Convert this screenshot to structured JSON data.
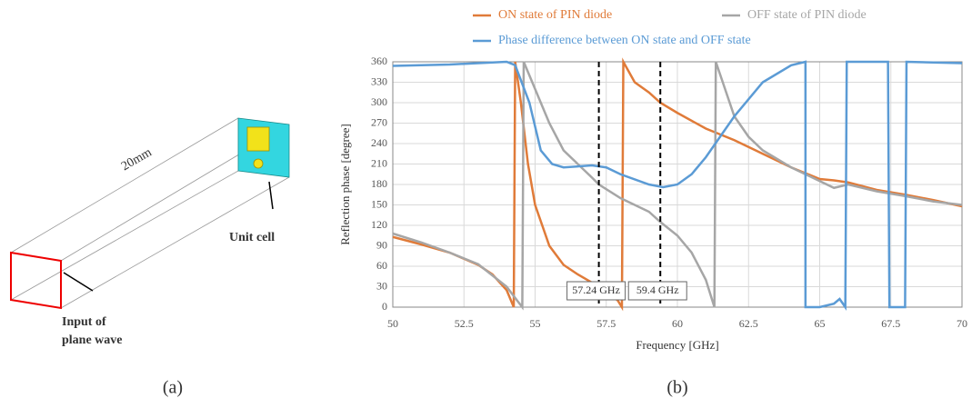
{
  "diagram": {
    "dimension": "20mm",
    "unit_cell": "Unit cell",
    "input": [
      "Input of",
      "plane wave"
    ]
  },
  "panel_labels": [
    "(a)",
    "(b)"
  ],
  "chart_data": {
    "type": "line",
    "x_label": "Frequency [GHz]",
    "y_label": "Reflection phase [degree]",
    "xlim": [
      50,
      70
    ],
    "ylim": [
      0,
      360
    ],
    "xticks": [
      50,
      52.5,
      55,
      57.5,
      60,
      62.5,
      65,
      67.5,
      70
    ],
    "yticks": [
      0,
      30,
      60,
      90,
      120,
      150,
      180,
      210,
      240,
      270,
      300,
      330,
      360
    ],
    "grid": true,
    "annotations": [
      {
        "x": 57.24,
        "label": "57.24 GHz"
      },
      {
        "x": 59.4,
        "label": "59.4 GHz"
      }
    ],
    "series": [
      {
        "name": "ON state of PIN diode",
        "color": "#e07b39",
        "x": [
          50,
          51,
          52,
          53,
          53.5,
          54,
          54.25,
          54.3,
          54.5,
          54.75,
          55,
          55.5,
          56,
          56.5,
          57,
          57.5,
          57.9,
          58.05,
          58.1,
          58.5,
          59,
          59.4,
          60,
          61,
          62,
          63,
          64,
          65,
          65.5,
          66,
          67,
          68,
          69,
          70
        ],
        "values": [
          103,
          92,
          80,
          62,
          48,
          25,
          0,
          360,
          300,
          210,
          150,
          90,
          62,
          48,
          36,
          22,
          10,
          0,
          360,
          330,
          315,
          300,
          285,
          262,
          245,
          225,
          205,
          188,
          186,
          183,
          172,
          165,
          157,
          148
        ]
      },
      {
        "name": "OFF state of PIN diode",
        "color": "#a6a6a6",
        "x": [
          50,
          51,
          52,
          53,
          54,
          54.4,
          54.55,
          54.6,
          55,
          55.5,
          56,
          57,
          57.24,
          58,
          59,
          59.4,
          60,
          60.5,
          61,
          61.3,
          61.35,
          62,
          62.5,
          63,
          64,
          65,
          65.5,
          66,
          67,
          68,
          69,
          70
        ],
        "values": [
          108,
          95,
          80,
          63,
          30,
          8,
          0,
          360,
          320,
          270,
          230,
          190,
          180,
          160,
          140,
          125,
          105,
          80,
          40,
          0,
          360,
          280,
          250,
          230,
          205,
          185,
          175,
          180,
          170,
          163,
          155,
          150
        ]
      },
      {
        "name": "Phase difference between ON state and OFF state",
        "color": "#5b9bd5",
        "x": [
          50,
          52,
          53,
          54,
          54.3,
          54.8,
          55.2,
          55.6,
          56,
          57,
          57.5,
          58,
          59,
          59.5,
          60,
          60.5,
          61,
          62,
          63,
          64,
          64.5,
          64.5,
          65,
          65.5,
          65.7,
          65.9,
          65.95,
          67.4,
          67.45,
          68,
          68.05,
          70
        ],
        "values": [
          354,
          356,
          358,
          360,
          355,
          300,
          230,
          210,
          205,
          208,
          205,
          195,
          180,
          176,
          180,
          195,
          220,
          280,
          330,
          355,
          360,
          0,
          0,
          5,
          12,
          0,
          360,
          360,
          0,
          0,
          360,
          358
        ]
      }
    ]
  }
}
